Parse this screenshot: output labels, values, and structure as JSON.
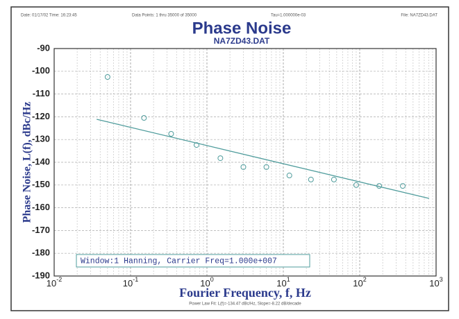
{
  "header": [
    "Date: 01/17/02  Time: 16:23:45",
    "Data Points: 1 thru 35000 of 35000",
    "Tau=1.000000e-03",
    "File: NA7ZD43.DAT"
  ],
  "chart_data": {
    "type": "scatter",
    "title": "Phase Noise",
    "subtitle": "NA7ZD43.DAT",
    "xlabel": "Fourier Frequency, f, Hz",
    "ylabel": "Phase Noise, L(f), dBc/Hz",
    "annotation": "Window:1 Hanning, Carrier Freq=1.000e+007",
    "footer": "Power Law Fit: L(f)=-134.47 dBc/Hz, Slope=-8.22 dB/decade",
    "xscale": "log",
    "grid": true,
    "minor_grid": true,
    "xlim": [
      0.01,
      1000
    ],
    "xticks": [
      {
        "value": 0.01,
        "label": [
          "10",
          "-2"
        ]
      },
      {
        "value": 0.1,
        "label": [
          "10",
          "-1"
        ]
      },
      {
        "value": 1,
        "label": [
          "10",
          "0"
        ]
      },
      {
        "value": 10,
        "label": [
          "10",
          "1"
        ]
      },
      {
        "value": 100,
        "label": [
          "10",
          "2"
        ]
      },
      {
        "value": 1000,
        "label": [
          "10",
          "3"
        ]
      }
    ],
    "ylim": [
      -190,
      -90
    ],
    "yticks": [
      -90,
      -100,
      -110,
      -120,
      -130,
      -140,
      -150,
      -160,
      -170,
      -180,
      -190
    ],
    "series": [
      {
        "color": "#4f9c9c",
        "x": [
          0.05,
          0.15,
          0.34,
          0.73,
          1.5,
          3.0,
          6.0,
          12,
          23,
          46,
          90,
          180,
          366
        ],
        "values": [
          -102.5,
          -120.5,
          -127.5,
          -132.4,
          -138.2,
          -142.1,
          -142.1,
          -145.8,
          -147.6,
          -147.6,
          -150,
          -150.4,
          -150.4
        ]
      }
    ],
    "fit": {
      "color": "#4f9c9c",
      "x": [
        0.036,
        810
      ],
      "values": [
        -121.1,
        -155.9
      ]
    }
  }
}
